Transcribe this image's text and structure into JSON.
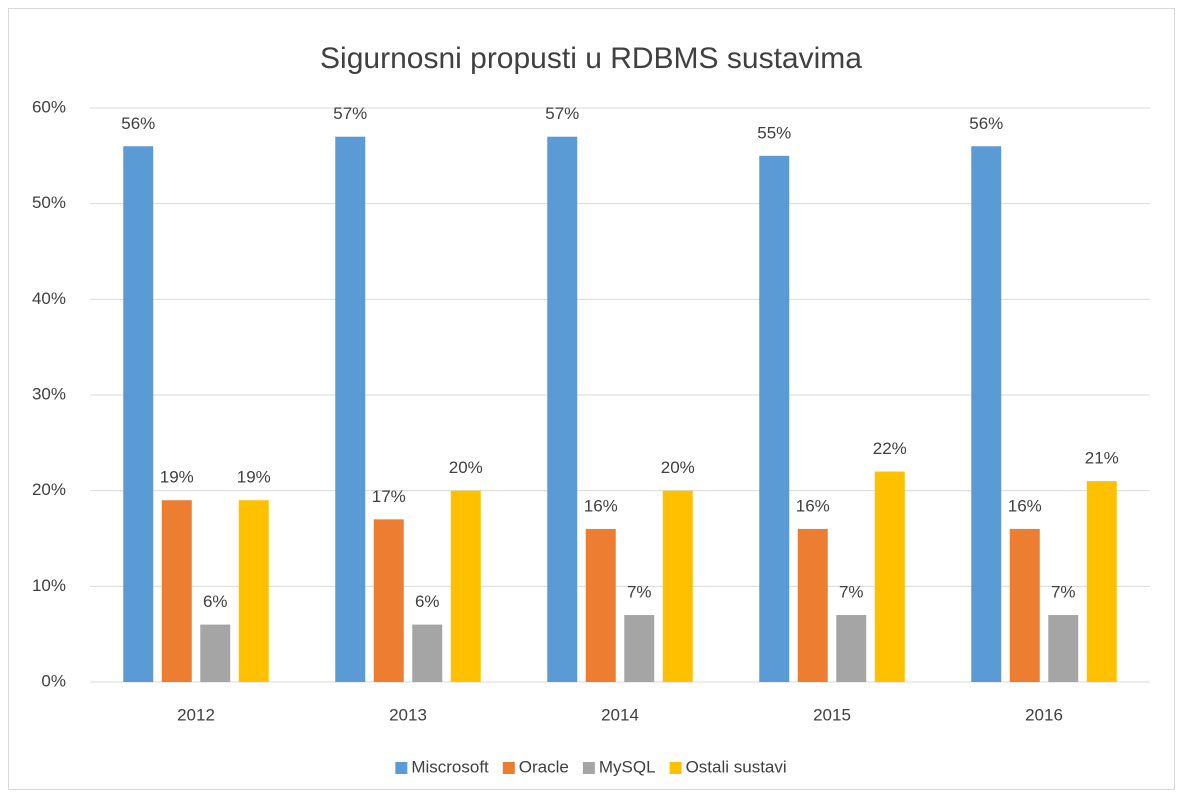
{
  "chart_data": {
    "type": "bar",
    "title": "Sigurnosni propusti u RDBMS sustavima",
    "categories": [
      "2012",
      "2013",
      "2014",
      "2015",
      "2016"
    ],
    "series": [
      {
        "name": "Miscrosoft",
        "color": "#5b9bd5",
        "values": [
          56,
          57,
          57,
          55,
          56
        ],
        "value_labels": [
          "56%",
          "57%",
          "57%",
          "55%",
          "56%"
        ]
      },
      {
        "name": "Oracle",
        "color": "#ed7d31",
        "values": [
          19,
          17,
          16,
          16,
          16
        ],
        "value_labels": [
          "19%",
          "17%",
          "16%",
          "16%",
          "16%"
        ]
      },
      {
        "name": "MySQL",
        "color": "#a5a5a5",
        "values": [
          6,
          6,
          7,
          7,
          7
        ],
        "value_labels": [
          "6%",
          "6%",
          "7%",
          "7%",
          "7%"
        ]
      },
      {
        "name": "Ostali sustavi",
        "color": "#ffc000",
        "values": [
          19,
          20,
          20,
          22,
          21
        ],
        "value_labels": [
          "19%",
          "20%",
          "20%",
          "22%",
          "21%"
        ]
      }
    ],
    "ylim": [
      0,
      60
    ],
    "yticks": [
      {
        "value": 0,
        "label": "0%"
      },
      {
        "value": 10,
        "label": "10%"
      },
      {
        "value": 20,
        "label": "20%"
      },
      {
        "value": 30,
        "label": "30%"
      },
      {
        "value": 40,
        "label": "40%"
      },
      {
        "value": 50,
        "label": "50%"
      },
      {
        "value": 60,
        "label": "60%"
      }
    ],
    "grid": true,
    "legend": "bottom"
  }
}
